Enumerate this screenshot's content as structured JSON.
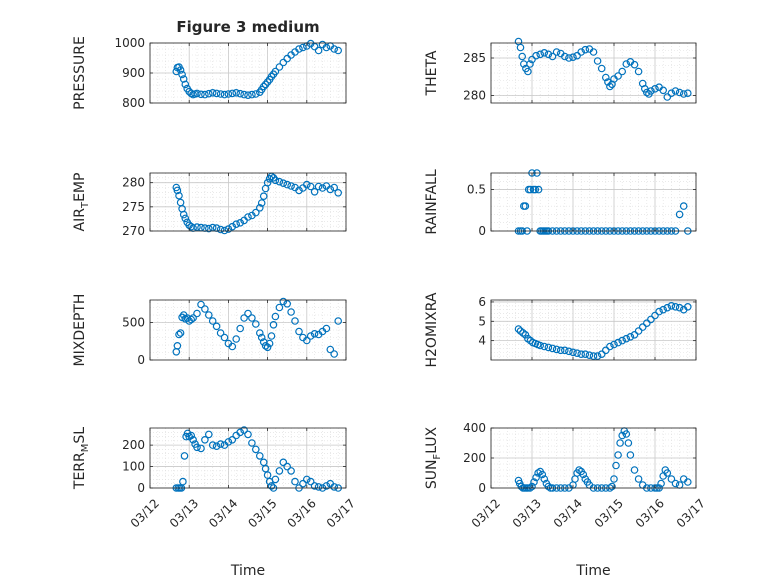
{
  "colors": {
    "marker": "#0072BD",
    "axis": "#262626",
    "grid": "#b4b4b4",
    "background": "#ffffff"
  },
  "chart_data": [
    {
      "type": "scatter",
      "title": "Figure 3 medium",
      "ylabel": {
        "main": "PRESSURE",
        "sub": ""
      },
      "xlabel": "",
      "xlim": [
        0,
        5
      ],
      "ylim": [
        800,
        1000
      ],
      "yticks": [
        800,
        900,
        1000
      ],
      "grid": true,
      "show_xticklabels": false,
      "x": [
        0.67,
        0.7,
        0.74,
        0.78,
        0.82,
        0.86,
        0.9,
        0.95,
        1.0,
        1.05,
        1.1,
        1.15,
        1.2,
        1.3,
        1.4,
        1.5,
        1.6,
        1.7,
        1.8,
        1.9,
        2.0,
        2.1,
        2.2,
        2.3,
        2.4,
        2.5,
        2.6,
        2.7,
        2.8,
        2.85,
        2.9,
        2.95,
        3.0,
        3.05,
        3.1,
        3.15,
        3.2,
        3.3,
        3.4,
        3.5,
        3.6,
        3.7,
        3.8,
        3.9,
        4.0,
        4.1,
        4.2,
        4.3,
        4.4,
        4.5,
        4.6,
        4.7,
        4.8
      ],
      "y": [
        905,
        918,
        920,
        910,
        895,
        880,
        862,
        848,
        838,
        832,
        828,
        830,
        832,
        829,
        828,
        831,
        834,
        832,
        830,
        828,
        830,
        832,
        834,
        831,
        828,
        826,
        828,
        830,
        836,
        845,
        855,
        862,
        870,
        878,
        888,
        896,
        905,
        920,
        935,
        948,
        960,
        970,
        980,
        985,
        990,
        998,
        988,
        975,
        995,
        985,
        990,
        980,
        975
      ]
    },
    {
      "type": "scatter",
      "title": "",
      "ylabel": {
        "main": "THETA",
        "sub": ""
      },
      "xlabel": "",
      "xlim": [
        0,
        5
      ],
      "ylim": [
        279,
        287
      ],
      "yticks": [
        280,
        285
      ],
      "grid": true,
      "show_xticklabels": false,
      "x": [
        0.67,
        0.72,
        0.76,
        0.8,
        0.85,
        0.9,
        0.95,
        1.0,
        1.1,
        1.2,
        1.3,
        1.4,
        1.5,
        1.6,
        1.7,
        1.8,
        1.9,
        2.0,
        2.1,
        2.2,
        2.3,
        2.4,
        2.5,
        2.6,
        2.7,
        2.8,
        2.85,
        2.9,
        2.95,
        3.0,
        3.1,
        3.2,
        3.3,
        3.4,
        3.5,
        3.6,
        3.7,
        3.75,
        3.8,
        3.85,
        3.9,
        4.0,
        4.1,
        4.2,
        4.3,
        4.4,
        4.5,
        4.6,
        4.7,
        4.8
      ],
      "y": [
        287.2,
        286.4,
        285.2,
        284.2,
        283.6,
        283.2,
        284.2,
        284.8,
        285.3,
        285.5,
        285.7,
        285.5,
        285.2,
        285.8,
        285.6,
        285.2,
        285.0,
        285.1,
        285.3,
        285.8,
        286.1,
        286.2,
        285.8,
        284.6,
        283.6,
        282.4,
        281.8,
        281.2,
        281.5,
        282.2,
        282.6,
        283.2,
        284.2,
        284.5,
        284.1,
        283.2,
        281.6,
        280.9,
        280.4,
        280.2,
        280.6,
        280.9,
        281.1,
        280.7,
        279.8,
        280.3,
        280.6,
        280.4,
        280.2,
        280.3
      ]
    },
    {
      "type": "scatter",
      "title": "",
      "ylabel": {
        "main": "AIR",
        "sub": "T",
        "rest": "EMP"
      },
      "xlabel": "",
      "xlim": [
        0,
        5
      ],
      "ylim": [
        270,
        282
      ],
      "yticks": [
        270,
        275,
        280
      ],
      "grid": true,
      "show_xticklabels": false,
      "x": [
        0.67,
        0.7,
        0.74,
        0.78,
        0.82,
        0.86,
        0.9,
        0.95,
        1.0,
        1.05,
        1.1,
        1.2,
        1.3,
        1.4,
        1.5,
        1.6,
        1.7,
        1.8,
        1.9,
        2.0,
        2.1,
        2.2,
        2.3,
        2.4,
        2.5,
        2.6,
        2.7,
        2.8,
        2.85,
        2.9,
        2.95,
        3.0,
        3.05,
        3.1,
        3.15,
        3.2,
        3.3,
        3.4,
        3.5,
        3.6,
        3.7,
        3.8,
        3.9,
        4.0,
        4.1,
        4.2,
        4.3,
        4.4,
        4.5,
        4.6,
        4.7,
        4.8
      ],
      "y": [
        279.0,
        278.4,
        277.3,
        275.9,
        274.6,
        273.4,
        272.6,
        271.8,
        271.2,
        270.9,
        270.6,
        270.8,
        270.7,
        270.6,
        270.5,
        270.7,
        270.6,
        270.3,
        270.1,
        270.4,
        270.9,
        271.4,
        271.7,
        272.2,
        272.9,
        273.2,
        273.8,
        274.8,
        275.8,
        277.2,
        278.8,
        280.0,
        280.8,
        281.3,
        281.0,
        280.5,
        280.2,
        279.9,
        279.6,
        279.3,
        279.0,
        278.4,
        278.9,
        279.6,
        279.2,
        278.1,
        279.2,
        278.9,
        279.3,
        278.6,
        279.0,
        277.9
      ]
    },
    {
      "type": "scatter",
      "title": "",
      "ylabel": {
        "main": "RAINFALL",
        "sub": ""
      },
      "xlabel": "",
      "xlim": [
        0,
        5
      ],
      "ylim": [
        0,
        0.7
      ],
      "yticks": [
        0,
        0.5
      ],
      "grid": true,
      "show_xticklabels": false,
      "x": [
        0.67,
        0.72,
        0.76,
        0.8,
        0.84,
        0.88,
        0.92,
        0.96,
        1.0,
        1.04,
        1.08,
        1.12,
        1.16,
        1.2,
        1.24,
        1.28,
        1.32,
        1.36,
        1.4,
        1.5,
        1.6,
        1.7,
        1.8,
        1.9,
        2.0,
        2.1,
        2.2,
        2.3,
        2.4,
        2.5,
        2.6,
        2.7,
        2.8,
        2.9,
        3.0,
        3.1,
        3.2,
        3.3,
        3.4,
        3.5,
        3.6,
        3.7,
        3.8,
        3.9,
        4.0,
        4.1,
        4.2,
        4.3,
        4.4,
        4.5,
        4.6,
        4.7,
        4.8
      ],
      "y": [
        0,
        0,
        0,
        0.3,
        0.3,
        0,
        0.5,
        0.5,
        0.7,
        0.5,
        0.5,
        0.7,
        0.5,
        0,
        0,
        0,
        0,
        0,
        0,
        0,
        0,
        0,
        0,
        0,
        0,
        0,
        0,
        0,
        0,
        0,
        0,
        0,
        0,
        0,
        0,
        0,
        0,
        0,
        0,
        0,
        0,
        0,
        0,
        0,
        0,
        0,
        0,
        0,
        0,
        0,
        0.2,
        0.3,
        0
      ]
    },
    {
      "type": "scatter",
      "title": "",
      "ylabel": {
        "main": "MIXDEPTH",
        "sub": ""
      },
      "xlabel": "",
      "xlim": [
        0,
        5
      ],
      "ylim": [
        0,
        800
      ],
      "yticks": [
        0,
        500
      ],
      "grid": true,
      "show_xticklabels": false,
      "x": [
        0.67,
        0.7,
        0.74,
        0.78,
        0.82,
        0.86,
        0.9,
        0.95,
        1.0,
        1.05,
        1.1,
        1.2,
        1.3,
        1.4,
        1.5,
        1.6,
        1.7,
        1.8,
        1.9,
        2.0,
        2.1,
        2.2,
        2.3,
        2.4,
        2.5,
        2.6,
        2.7,
        2.8,
        2.85,
        2.9,
        2.95,
        3.0,
        3.05,
        3.1,
        3.15,
        3.2,
        3.3,
        3.4,
        3.5,
        3.6,
        3.7,
        3.8,
        3.9,
        4.0,
        4.1,
        4.2,
        4.3,
        4.4,
        4.5,
        4.6,
        4.7,
        4.8
      ],
      "y": [
        110,
        190,
        340,
        360,
        570,
        600,
        550,
        560,
        520,
        540,
        560,
        620,
        740,
        680,
        600,
        520,
        450,
        360,
        300,
        220,
        180,
        280,
        420,
        560,
        620,
        560,
        480,
        360,
        300,
        240,
        190,
        170,
        220,
        320,
        470,
        580,
        700,
        780,
        750,
        640,
        520,
        380,
        300,
        260,
        320,
        350,
        340,
        380,
        420,
        140,
        80,
        520
      ]
    },
    {
      "type": "scatter",
      "title": "",
      "ylabel": {
        "main": "H2OMIXRA",
        "sub": ""
      },
      "xlabel": "",
      "xlim": [
        0,
        5
      ],
      "ylim": [
        3,
        6.1
      ],
      "yticks": [
        4,
        5,
        6
      ],
      "grid": true,
      "show_xticklabels": false,
      "x": [
        0.67,
        0.72,
        0.78,
        0.84,
        0.9,
        0.96,
        1.02,
        1.08,
        1.14,
        1.2,
        1.3,
        1.4,
        1.5,
        1.6,
        1.7,
        1.8,
        1.9,
        2.0,
        2.1,
        2.2,
        2.3,
        2.4,
        2.5,
        2.6,
        2.7,
        2.8,
        2.9,
        3.0,
        3.1,
        3.2,
        3.3,
        3.4,
        3.5,
        3.6,
        3.7,
        3.8,
        3.9,
        4.0,
        4.1,
        4.2,
        4.3,
        4.4,
        4.5,
        4.6,
        4.7,
        4.8
      ],
      "y": [
        4.6,
        4.5,
        4.4,
        4.3,
        4.1,
        4.0,
        3.9,
        3.85,
        3.8,
        3.75,
        3.7,
        3.65,
        3.6,
        3.55,
        3.5,
        3.5,
        3.45,
        3.4,
        3.35,
        3.3,
        3.3,
        3.25,
        3.2,
        3.2,
        3.3,
        3.5,
        3.7,
        3.8,
        3.9,
        4.0,
        4.1,
        4.2,
        4.3,
        4.5,
        4.7,
        4.9,
        5.1,
        5.3,
        5.5,
        5.6,
        5.7,
        5.8,
        5.75,
        5.7,
        5.6,
        5.75
      ]
    },
    {
      "type": "scatter",
      "title": "",
      "ylabel": {
        "main": "TERR",
        "sub": "M",
        "rest": "SL"
      },
      "xlabel": "Time",
      "xlim": [
        0,
        5
      ],
      "ylim": [
        0,
        280
      ],
      "yticks": [
        0,
        100,
        200
      ],
      "grid": true,
      "show_xticklabels": true,
      "xticks": [
        0,
        1,
        2,
        3,
        4,
        5
      ],
      "xticklabels": [
        "03/12",
        "03/13",
        "03/14",
        "03/15",
        "03/16",
        "03/17"
      ],
      "x": [
        0.67,
        0.72,
        0.76,
        0.8,
        0.84,
        0.88,
        0.92,
        0.96,
        1.0,
        1.05,
        1.1,
        1.15,
        1.2,
        1.3,
        1.4,
        1.5,
        1.6,
        1.7,
        1.8,
        1.9,
        2.0,
        2.1,
        2.2,
        2.3,
        2.4,
        2.5,
        2.6,
        2.7,
        2.8,
        2.9,
        2.95,
        3.0,
        3.05,
        3.1,
        3.15,
        3.2,
        3.3,
        3.4,
        3.5,
        3.6,
        3.7,
        3.8,
        3.9,
        4.0,
        4.1,
        4.2,
        4.3,
        4.4,
        4.5,
        4.6,
        4.7,
        4.8
      ],
      "y": [
        0,
        0,
        0,
        0,
        30,
        150,
        240,
        255,
        240,
        245,
        225,
        205,
        190,
        185,
        225,
        250,
        200,
        195,
        205,
        200,
        215,
        225,
        245,
        260,
        270,
        250,
        210,
        180,
        150,
        120,
        90,
        60,
        30,
        10,
        0,
        40,
        80,
        120,
        100,
        80,
        30,
        0,
        20,
        40,
        30,
        10,
        5,
        0,
        10,
        20,
        5,
        0
      ]
    },
    {
      "type": "scatter",
      "title": "",
      "ylabel": {
        "main": "SUN",
        "sub": "F",
        "rest": "LUX"
      },
      "xlabel": "Time",
      "xlim": [
        0,
        5
      ],
      "ylim": [
        0,
        400
      ],
      "yticks": [
        0,
        200,
        400
      ],
      "grid": true,
      "show_xticklabels": true,
      "xticks": [
        0,
        1,
        2,
        3,
        4,
        5
      ],
      "xticklabels": [
        "03/12",
        "03/13",
        "03/14",
        "03/15",
        "03/16",
        "03/17"
      ],
      "x": [
        0.67,
        0.7,
        0.74,
        0.78,
        0.82,
        0.86,
        0.9,
        0.95,
        1.0,
        1.05,
        1.1,
        1.15,
        1.2,
        1.25,
        1.3,
        1.35,
        1.4,
        1.45,
        1.5,
        1.6,
        1.7,
        1.8,
        1.9,
        2.0,
        2.05,
        2.1,
        2.15,
        2.2,
        2.25,
        2.3,
        2.35,
        2.4,
        2.5,
        2.6,
        2.7,
        2.8,
        2.9,
        2.95,
        3.0,
        3.05,
        3.1,
        3.15,
        3.2,
        3.25,
        3.3,
        3.35,
        3.4,
        3.5,
        3.6,
        3.7,
        3.8,
        3.9,
        4.0,
        4.05,
        4.1,
        4.15,
        4.2,
        4.25,
        4.3,
        4.4,
        4.5,
        4.6,
        4.7,
        4.8
      ],
      "y": [
        50,
        30,
        10,
        0,
        0,
        0,
        0,
        0,
        10,
        40,
        70,
        100,
        110,
        90,
        60,
        30,
        10,
        0,
        0,
        0,
        0,
        0,
        0,
        20,
        60,
        100,
        120,
        110,
        90,
        60,
        40,
        20,
        0,
        0,
        0,
        0,
        0,
        10,
        60,
        150,
        220,
        300,
        350,
        380,
        360,
        300,
        220,
        120,
        60,
        20,
        0,
        0,
        0,
        0,
        0,
        30,
        80,
        120,
        100,
        60,
        30,
        20,
        60,
        40
      ]
    }
  ]
}
